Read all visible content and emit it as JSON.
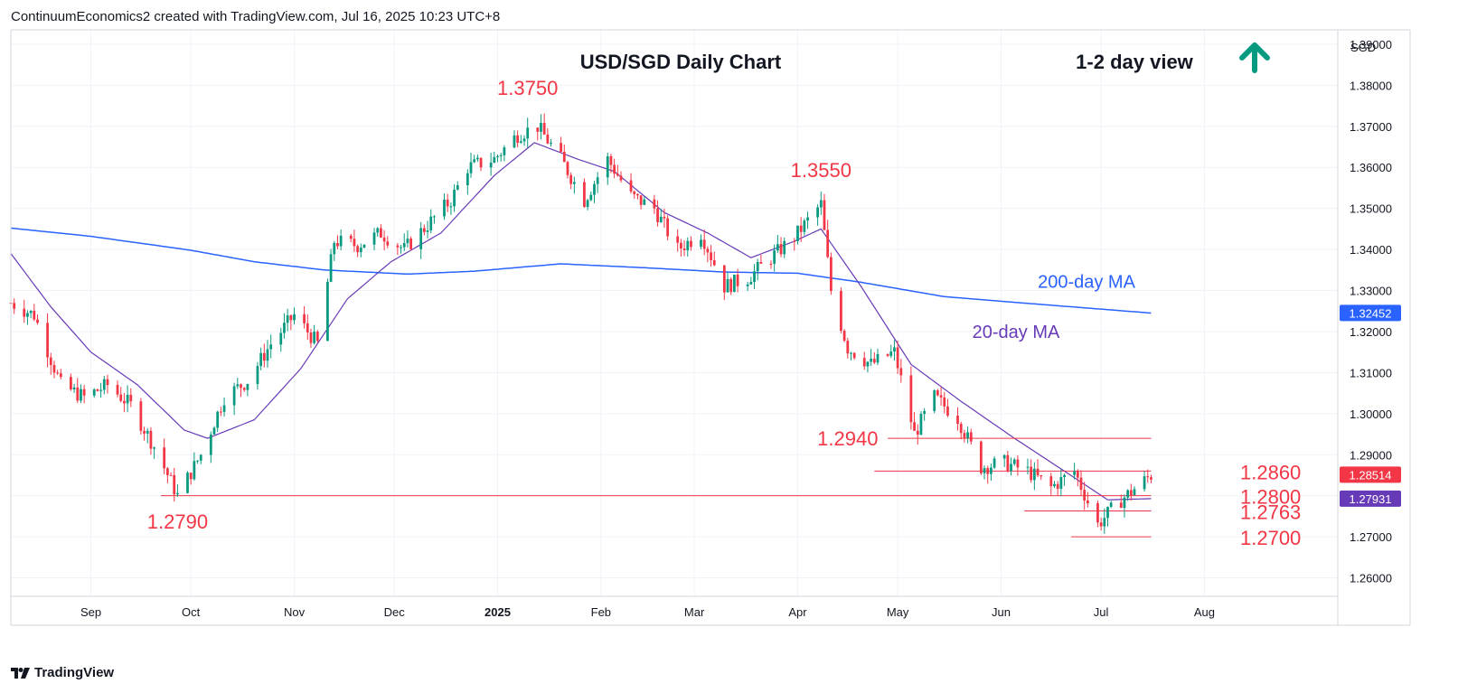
{
  "header": {
    "attribution": "ContinuumEconomics2 created with TradingView.com, Jul 16, 2025 10:23 UTC+8"
  },
  "footer": {
    "brand": "TradingView"
  },
  "colors": {
    "up": "#089981",
    "down": "#f23645",
    "ma20": "#673ab7",
    "ma200": "#2962ff",
    "level": "#f23645",
    "arrow": "#089981"
  },
  "chart_data": {
    "type": "candlestick",
    "title": "USD/SGD Daily Chart",
    "view_label": "1-2 day view",
    "view_direction": "up-arrow-icon",
    "currency_label": "SGD",
    "price_axis": {
      "ticks": [
        "1.39000",
        "1.38000",
        "1.37000",
        "1.36000",
        "1.35000",
        "1.34000",
        "1.33000",
        "1.32000",
        "1.31000",
        "1.30000",
        "1.29000",
        "1.28000",
        "1.27000",
        "1.26000"
      ],
      "range": [
        1.2555,
        1.3935
      ]
    },
    "time_axis": {
      "labels": [
        {
          "text": "Sep",
          "date": "2024-09-01"
        },
        {
          "text": "Oct",
          "date": "2024-10-01"
        },
        {
          "text": "Nov",
          "date": "2024-11-01"
        },
        {
          "text": "Dec",
          "date": "2024-12-01"
        },
        {
          "text": "2025",
          "date": "2025-01-01",
          "bold": true
        },
        {
          "text": "Feb",
          "date": "2025-02-01"
        },
        {
          "text": "Mar",
          "date": "2025-03-01"
        },
        {
          "text": "Apr",
          "date": "2025-04-01"
        },
        {
          "text": "May",
          "date": "2025-05-01"
        },
        {
          "text": "Jun",
          "date": "2025-06-01"
        },
        {
          "text": "Jul",
          "date": "2025-07-01"
        },
        {
          "text": "Aug",
          "date": "2025-08-01"
        }
      ],
      "range": [
        "2024-08-08",
        "2025-09-10"
      ]
    },
    "price_badges": [
      {
        "text": "1.32452",
        "value": 1.32452,
        "series": "ma200"
      },
      {
        "text": "1.28514",
        "value": 1.28514,
        "series": "price"
      },
      {
        "text": "1.27931",
        "value": 1.27931,
        "series": "ma20"
      }
    ],
    "levels": [
      {
        "label": "1.2940",
        "value": 1.294,
        "from": "2025-04-28",
        "to": "2025-07-16",
        "label_side": "left",
        "label_at": "2025-04-16"
      },
      {
        "label": "1.2860",
        "value": 1.286,
        "from": "2025-04-24",
        "to": "2025-07-16",
        "label_side": "right"
      },
      {
        "label": "1.2800",
        "value": 1.28,
        "from": "2024-09-22",
        "to": "2025-07-16",
        "label_side": "right"
      },
      {
        "label": "1.2763",
        "value": 1.2763,
        "from": "2025-06-08",
        "to": "2025-07-16",
        "label_side": "right"
      },
      {
        "label": "1.2700",
        "value": 1.27,
        "from": "2025-06-22",
        "to": "2025-07-16",
        "label_side": "right"
      }
    ],
    "peak_labels": [
      {
        "label": "1.3750",
        "date": "2025-01-10",
        "value": 1.375
      },
      {
        "label": "1.3550",
        "date": "2025-04-08",
        "value": 1.355
      },
      {
        "label": "1.2790",
        "date": "2024-09-27",
        "value": 1.279
      }
    ],
    "series": [
      {
        "name": "200-day MA",
        "key": "ma200",
        "points": [
          [
            "2024-08-08",
            1.3452
          ],
          [
            "2024-09-01",
            1.3432
          ],
          [
            "2024-10-01",
            1.3398
          ],
          [
            "2024-10-20",
            1.337
          ],
          [
            "2024-11-10",
            1.335
          ],
          [
            "2024-12-05",
            1.334
          ],
          [
            "2024-12-25",
            1.3347
          ],
          [
            "2025-01-20",
            1.3365
          ],
          [
            "2025-02-15",
            1.3355
          ],
          [
            "2025-03-10",
            1.3345
          ],
          [
            "2025-04-01",
            1.3342
          ],
          [
            "2025-04-20",
            1.332
          ],
          [
            "2025-05-15",
            1.3285
          ],
          [
            "2025-06-10",
            1.3268
          ],
          [
            "2025-07-16",
            1.3245
          ]
        ]
      },
      {
        "name": "20-day MA",
        "key": "ma20",
        "points": [
          [
            "2024-08-08",
            1.339
          ],
          [
            "2024-08-20",
            1.326
          ],
          [
            "2024-09-01",
            1.315
          ],
          [
            "2024-09-15",
            1.307
          ],
          [
            "2024-09-29",
            1.296
          ],
          [
            "2024-10-06",
            1.294
          ],
          [
            "2024-10-20",
            1.2985
          ],
          [
            "2024-11-03",
            1.311
          ],
          [
            "2024-11-17",
            1.328
          ],
          [
            "2024-11-30",
            1.337
          ],
          [
            "2024-12-15",
            1.344
          ],
          [
            "2024-12-31",
            1.358
          ],
          [
            "2025-01-12",
            1.366
          ],
          [
            "2025-01-25",
            1.362
          ],
          [
            "2025-02-05",
            1.359
          ],
          [
            "2025-02-20",
            1.349
          ],
          [
            "2025-03-05",
            1.344
          ],
          [
            "2025-03-18",
            1.338
          ],
          [
            "2025-03-31",
            1.342
          ],
          [
            "2025-04-08",
            1.345
          ],
          [
            "2025-04-20",
            1.331
          ],
          [
            "2025-05-05",
            1.312
          ],
          [
            "2025-05-20",
            1.303
          ],
          [
            "2025-06-05",
            1.294
          ],
          [
            "2025-06-20",
            1.286
          ],
          [
            "2025-07-03",
            1.279
          ],
          [
            "2025-07-16",
            1.2793
          ]
        ]
      }
    ],
    "ohlc_anchors": [
      [
        "2024-08-08",
        1.327
      ],
      [
        "2024-08-15",
        1.324
      ],
      [
        "2024-08-23",
        1.307
      ],
      [
        "2024-08-30",
        1.304
      ],
      [
        "2024-09-06",
        1.307
      ],
      [
        "2024-09-13",
        1.302
      ],
      [
        "2024-09-20",
        1.292
      ],
      [
        "2024-09-27",
        1.28
      ],
      [
        "2024-10-04",
        1.29
      ],
      [
        "2024-10-11",
        1.304
      ],
      [
        "2024-10-18",
        1.308
      ],
      [
        "2024-10-25",
        1.317
      ],
      [
        "2024-11-01",
        1.324
      ],
      [
        "2024-11-08",
        1.317
      ],
      [
        "2024-11-13",
        1.342
      ],
      [
        "2024-11-20",
        1.341
      ],
      [
        "2024-11-27",
        1.344
      ],
      [
        "2024-12-04",
        1.34
      ],
      [
        "2024-12-11",
        1.346
      ],
      [
        "2024-12-18",
        1.352
      ],
      [
        "2024-12-23",
        1.36
      ],
      [
        "2024-12-31",
        1.362
      ],
      [
        "2025-01-07",
        1.368
      ],
      [
        "2025-01-13",
        1.37
      ],
      [
        "2025-01-20",
        1.362
      ],
      [
        "2025-01-27",
        1.352
      ],
      [
        "2025-02-03",
        1.362
      ],
      [
        "2025-02-10",
        1.353
      ],
      [
        "2025-02-17",
        1.35
      ],
      [
        "2025-02-24",
        1.34
      ],
      [
        "2025-03-03",
        1.344
      ],
      [
        "2025-03-10",
        1.331
      ],
      [
        "2025-03-17",
        1.333
      ],
      [
        "2025-03-24",
        1.338
      ],
      [
        "2025-03-31",
        1.343
      ],
      [
        "2025-04-08",
        1.351
      ],
      [
        "2025-04-11",
        1.33
      ],
      [
        "2025-04-16",
        1.316
      ],
      [
        "2025-04-23",
        1.312
      ],
      [
        "2025-04-30",
        1.315
      ],
      [
        "2025-05-06",
        1.295
      ],
      [
        "2025-05-12",
        1.304
      ],
      [
        "2025-05-19",
        1.299
      ],
      [
        "2025-05-26",
        1.287
      ],
      [
        "2025-06-02",
        1.288
      ],
      [
        "2025-06-09",
        1.286
      ],
      [
        "2025-06-16",
        1.282
      ],
      [
        "2025-06-23",
        1.286
      ],
      [
        "2025-06-30",
        1.273
      ],
      [
        "2025-07-07",
        1.279
      ],
      [
        "2025-07-16",
        1.285
      ]
    ]
  }
}
